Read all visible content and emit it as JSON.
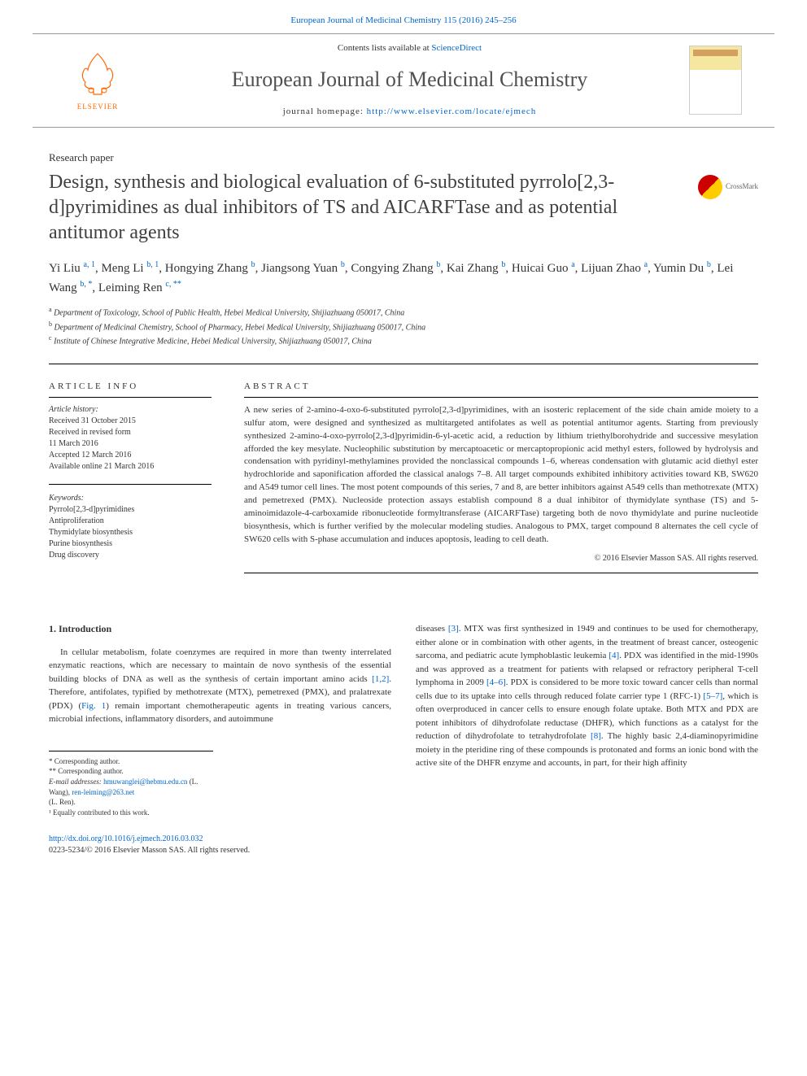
{
  "header": {
    "top_link": "European Journal of Medicinal Chemistry 115 (2016) 245–256",
    "contents_line_prefix": "Contents lists available at ",
    "contents_line_link": "ScienceDirect",
    "journal_name": "European Journal of Medicinal Chemistry",
    "homepage_prefix": "journal homepage: ",
    "homepage_url": "http://www.elsevier.com/locate/ejmech",
    "elsevier": "ELSEVIER"
  },
  "paper_type": "Research paper",
  "title": "Design, synthesis and biological evaluation of 6-substituted pyrrolo[2,3-d]pyrimidines as dual inhibitors of TS and AICARFTase and as potential antitumor agents",
  "crossmark": "CrossMark",
  "authors_html": "Yi Liu <sup class='sup'>a, 1</sup>, Meng Li <sup class='sup'>b, 1</sup>, Hongying Zhang <sup class='sup'>b</sup>, Jiangsong Yuan <sup class='sup'>b</sup>, Congying Zhang <sup class='sup'>b</sup>, Kai Zhang <sup class='sup'>b</sup>, Huicai Guo <sup class='sup'>a</sup>, Lijuan Zhao <sup class='sup'>a</sup>, Yumin Du <sup class='sup'>b</sup>, Lei Wang <sup class='sup'>b, *</sup>, Leiming Ren <sup class='sup'>c, **</sup>",
  "affiliations": {
    "a": "Department of Toxicology, School of Public Health, Hebei Medical University, Shijiazhuang 050017, China",
    "b": "Department of Medicinal Chemistry, School of Pharmacy, Hebei Medical University, Shijiazhuang 050017, China",
    "c": "Institute of Chinese Integrative Medicine, Hebei Medical University, Shijiazhuang 050017, China"
  },
  "article_info": {
    "heading": "ARTICLE INFO",
    "history_label": "Article history:",
    "history": "Received 31 October 2015\nReceived in revised form\n11 March 2016\nAccepted 12 March 2016\nAvailable online 21 March 2016",
    "keywords_label": "Keywords:",
    "keywords": "Pyrrolo[2,3-d]pyrimidines\nAntiproliferation\nThymidylate biosynthesis\nPurine biosynthesis\nDrug discovery"
  },
  "abstract": {
    "heading": "ABSTRACT",
    "text": "A new series of 2-amino-4-oxo-6-substituted pyrrolo[2,3-d]pyrimidines, with an isosteric replacement of the side chain amide moiety to a sulfur atom, were designed and synthesized as multitargeted antifolates as well as potential antitumor agents. Starting from previously synthesized 2-amino-4-oxo-pyrrolo[2,3-d]pyrimidin-6-yl-acetic acid, a reduction by lithium triethylborohydride and successive mesylation afforded the key mesylate. Nucleophilic substitution by mercaptoacetic or mercaptopropionic acid methyl esters, followed by hydrolysis and condensation with pyridinyl-methylamines provided the nonclassical compounds 1–6, whereas condensation with glutamic acid diethyl ester hydrochloride and saponification afforded the classical analogs 7–8. All target compounds exhibited inhibitory activities toward KB, SW620 and A549 tumor cell lines. The most potent compounds of this series, 7 and 8, are better inhibitors against A549 cells than methotrexate (MTX) and pemetrexed (PMX). Nucleoside protection assays establish compound 8 a dual inhibitor of thymidylate synthase (TS) and 5-aminoimidazole-4-carboxamide ribonucleotide formyltransferase (AICARFTase) targeting both de novo thymidylate and purine nucleotide biosynthesis, which is further verified by the molecular modeling studies. Analogous to PMX, target compound 8 alternates the cell cycle of SW620 cells with S-phase accumulation and induces apoptosis, leading to cell death.",
    "copyright": "© 2016 Elsevier Masson SAS. All rights reserved."
  },
  "intro": {
    "heading": "1. Introduction",
    "col1": "In cellular metabolism, folate coenzymes are required in more than twenty interrelated enzymatic reactions, which are necessary to maintain de novo synthesis of the essential building blocks of DNA as well as the synthesis of certain important amino acids [1,2]. Therefore, antifolates, typified by methotrexate (MTX), pemetrexed (PMX), and pralatrexate (PDX) (Fig. 1) remain important chemotherapeutic agents in treating various cancers, microbial infections, inflammatory disorders, and autoimmune",
    "col2": "diseases [3]. MTX was first synthesized in 1949 and continues to be used for chemotherapy, either alone or in combination with other agents, in the treatment of breast cancer, osteogenic sarcoma, and pediatric acute lymphoblastic leukemia [4]. PDX was identified in the mid-1990s and was approved as a treatment for patients with relapsed or refractory peripheral T-cell lymphoma in 2009 [4–6]. PDX is considered to be more toxic toward cancer cells than normal cells due to its uptake into cells through reduced folate carrier type 1 (RFC-1) [5–7], which is often overproduced in cancer cells to ensure enough folate uptake. Both MTX and PDX are potent inhibitors of dihydrofolate reductase (DHFR), which functions as a catalyst for the reduction of dihydrofolate to tetrahydrofolate [8]. The highly basic 2,4-diaminopyrimidine moiety in the pteridine ring of these compounds is protonated and forms an ionic bond with the active site of the DHFR enzyme and accounts, in part, for their high affinity"
  },
  "footnotes": {
    "corr1": "* Corresponding author.",
    "corr2": "** Corresponding author.",
    "email_label": "E-mail addresses: ",
    "email1": "hmuwanglei@hebmu.edu.cn",
    "email1_name": " (L. Wang), ",
    "email2": "ren-leiming@263.net",
    "email2_name": "(L. Ren).",
    "equal": "¹ Equally contributed to this work."
  },
  "footer": {
    "doi": "http://dx.doi.org/10.1016/j.ejmech.2016.03.032",
    "issn": "0223-5234/© 2016 Elsevier Masson SAS. All rights reserved."
  },
  "colors": {
    "link": "#0066cc",
    "elsevier_orange": "#ff6600",
    "text": "#333333"
  }
}
